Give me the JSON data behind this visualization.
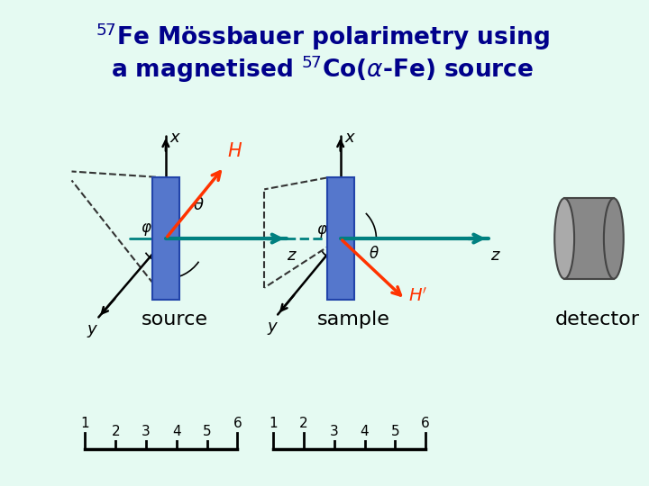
{
  "bg_color": "#e5faf2",
  "title_line1": "$^{57}$Fe Mössbauer polarimetry using",
  "title_line2": "a magnetised $^{57}$Co($\\alpha$-Fe) source",
  "title_color": "#00008b",
  "title_fontsize": 19,
  "blue_color": "#5577cc",
  "blue_edge": "#2244aa",
  "dashed_color": "#333333",
  "teal_color": "#008080",
  "red_color": "#ff3300",
  "black": "#000000",
  "gray_body": "#888888",
  "gray_light": "#aaaaaa",
  "gray_dark": "#444444",
  "source_label": "source",
  "sample_label": "sample",
  "detector_label": "detector"
}
